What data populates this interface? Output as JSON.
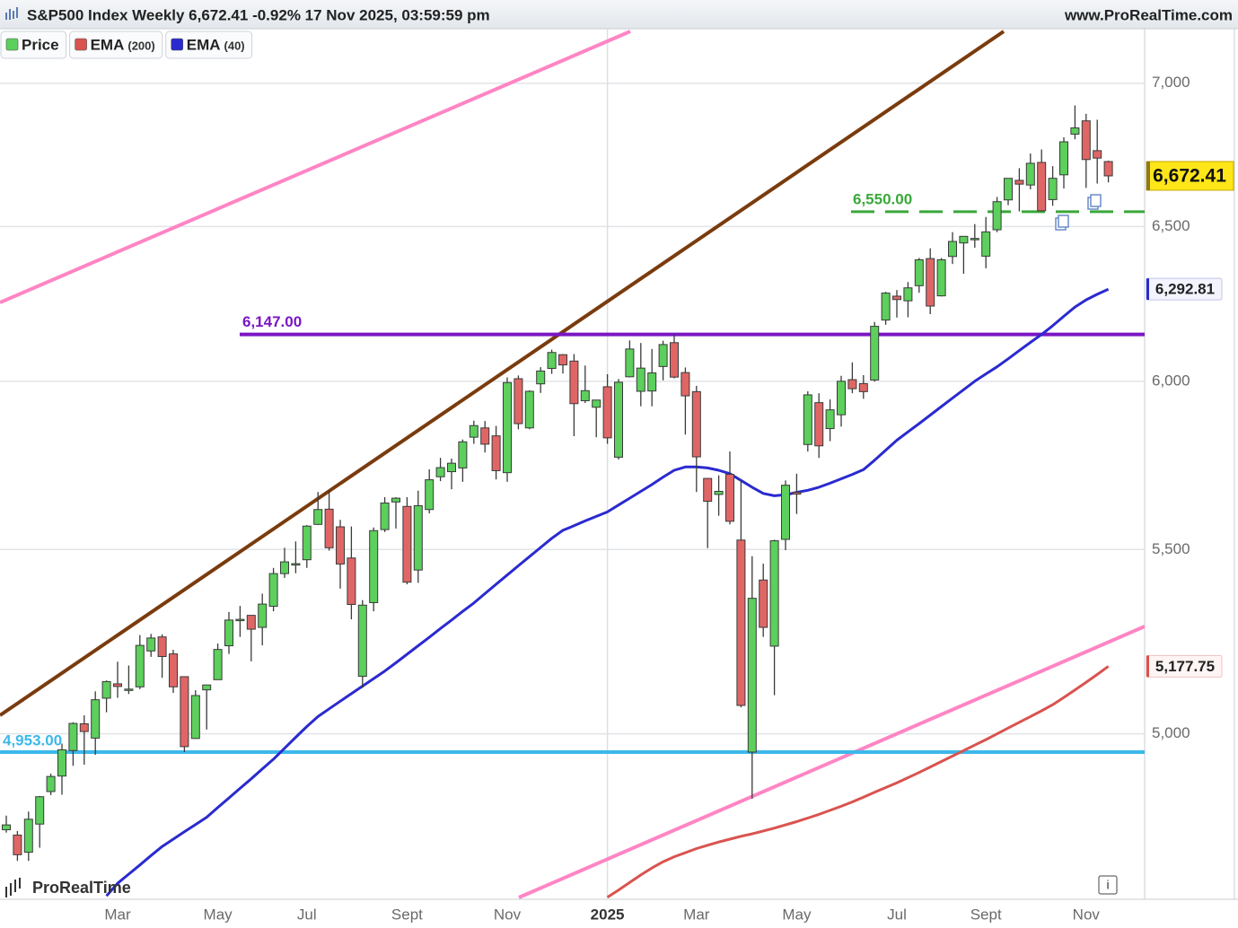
{
  "chart_data": {
    "type": "candlestick",
    "title": "S&P500 Index Weekly 6,672.41 -0.92% 17 Nov 2025, 03:59:59 pm",
    "source": "www.ProRealTime.com",
    "watermark": "ProRealTime",
    "log_scale": true,
    "grid": true,
    "ylim": [
      4590,
      7200
    ],
    "yticks": [
      {
        "value": 5000,
        "label": "5,000"
      },
      {
        "value": 5500,
        "label": "5,500"
      },
      {
        "value": 6000,
        "label": "6,000"
      },
      {
        "value": 6500,
        "label": "6,500"
      },
      {
        "value": 7000,
        "label": "7,000"
      }
    ],
    "categories": [
      null,
      null,
      null,
      null,
      null,
      null,
      null,
      null,
      null,
      null,
      "Mar",
      null,
      null,
      null,
      null,
      null,
      null,
      null,
      null,
      "May",
      null,
      null,
      null,
      null,
      null,
      null,
      null,
      "Jul",
      null,
      null,
      null,
      null,
      null,
      null,
      null,
      null,
      "Sept",
      null,
      null,
      null,
      null,
      null,
      null,
      null,
      null,
      "Nov",
      null,
      null,
      null,
      null,
      null,
      null,
      null,
      null,
      "2025",
      null,
      null,
      null,
      null,
      null,
      null,
      null,
      "Mar",
      null,
      null,
      null,
      null,
      null,
      null,
      null,
      null,
      "May",
      null,
      null,
      null,
      null,
      null,
      null,
      null,
      null,
      "Jul",
      null,
      null,
      null,
      null,
      null,
      null,
      null,
      "Sept",
      null,
      null,
      null,
      null,
      null,
      null,
      null,
      null,
      "Nov",
      null,
      null
    ],
    "series": [
      {
        "name": "Price",
        "color": "#3cb83c",
        "up_color": "#5ccf5c",
        "down_color": "#e06666",
        "last_label": "6,672.41",
        "open": [
          4758,
          4745,
          4703,
          4772,
          4853,
          4892,
          4957,
          5026,
          4989,
          5093,
          5131,
          5115,
          5123,
          5219,
          5257,
          5211,
          5150,
          4988,
          5115,
          5142,
          5233,
          5305,
          5316,
          5283,
          5341,
          5432,
          5460,
          5471,
          5572,
          5616,
          5565,
          5476,
          5151,
          5351,
          5557,
          5637,
          5624,
          5442,
          5615,
          5711,
          5726,
          5737,
          5829,
          5857,
          5833,
          5723,
          6008,
          5857,
          5992,
          6040,
          6083,
          6063,
          5940,
          5920,
          5983,
          5769,
          6014,
          5969,
          5970,
          6046,
          6121,
          6027,
          5968,
          5706,
          5659,
          5718,
          5527,
          4953,
          5414,
          5232,
          5529,
          5665,
          5807,
          5934,
          5855,
          5897,
          6005,
          5993,
          6004,
          6193,
          6270,
          6255,
          6304,
          6393,
          6271,
          6400,
          6445,
          6457,
          6401,
          6489,
          6590,
          6657,
          6641,
          6719,
          6591,
          6676,
          6818,
          6865,
          6760,
          6722
        ],
        "high": [
          4793,
          4755,
          4803,
          4842,
          4898,
          4975,
          5030,
          5048,
          5111,
          5140,
          5190,
          5180,
          5262,
          5265,
          5264,
          5222,
          5151,
          5114,
          5128,
          5239,
          5325,
          5342,
          5316,
          5376,
          5448,
          5505,
          5523,
          5570,
          5666,
          5670,
          5585,
          5566,
          5358,
          5563,
          5651,
          5651,
          5651,
          5670,
          5733,
          5767,
          5765,
          5822,
          5879,
          5878,
          5863,
          6012,
          6018,
          5972,
          6044,
          6099,
          6085,
          6085,
          6049,
          5940,
          6022,
          6007,
          6128,
          6120,
          6101,
          6127,
          6147,
          6043,
          5986,
          5706,
          5715,
          5786,
          5703,
          5481,
          5460,
          5528,
          5700,
          5720,
          5969,
          5963,
          5944,
          6017,
          6059,
          6019,
          6187,
          6284,
          6290,
          6316,
          6395,
          6427,
          6395,
          6481,
          6467,
          6508,
          6532,
          6600,
          6657,
          6699,
          6750,
          6764,
          6706,
          6807,
          6920,
          6890,
          6869,
          6725
        ],
        "low": [
          4751,
          4682,
          4682,
          4714,
          4844,
          4845,
          4918,
          4921,
          4946,
          5056,
          5094,
          5104,
          5117,
          5203,
          5147,
          5107,
          4953,
          4987,
          5011,
          5142,
          5211,
          5257,
          5191,
          5234,
          5327,
          5420,
          5433,
          5448,
          5570,
          5497,
          5390,
          5305,
          5120,
          5327,
          5550,
          5560,
          5402,
          5406,
          5604,
          5698,
          5674,
          5696,
          5809,
          5783,
          5703,
          5696,
          5853,
          5853,
          5964,
          6023,
          6024,
          5832,
          5933,
          5829,
          5809,
          5762,
          6012,
          5923,
          5923,
          6003,
          6009,
          5837,
          5666,
          5504,
          5597,
          5572,
          5069,
          4835,
          5257,
          5101,
          5498,
          5602,
          5786,
          5767,
          5817,
          5861,
          5963,
          5946,
          5999,
          6178,
          6201,
          6202,
          6281,
          6212,
          6269,
          6375,
          6343,
          6429,
          6361,
          6481,
          6572,
          6551,
          6626,
          6551,
          6570,
          6629,
          6800,
          6631,
          6646,
          6650
        ],
        "close": [
          4770,
          4697,
          4784,
          4840,
          4891,
          4959,
          5027,
          5006,
          5089,
          5137,
          5124,
          5117,
          5234,
          5254,
          5204,
          5123,
          4967,
          5100,
          5128,
          5223,
          5303,
          5305,
          5278,
          5347,
          5432,
          5465,
          5460,
          5567,
          5615,
          5505,
          5459,
          5346,
          5344,
          5554,
          5634,
          5648,
          5408,
          5626,
          5702,
          5738,
          5751,
          5815,
          5864,
          5808,
          5729,
          5996,
          5870,
          5969,
          6032,
          6090,
          6051,
          5931,
          5971,
          5942,
          5827,
          5997,
          6101,
          6041,
          6026,
          6115,
          6013,
          5955,
          5770,
          5639,
          5668,
          5581,
          5074,
          5363,
          5283,
          5525,
          5686,
          5660,
          5958,
          5803,
          5912,
          6000,
          5977,
          5968,
          6173,
          6280,
          6259,
          6297,
          6389,
          6238,
          6389,
          6450,
          6467,
          6460,
          6482,
          6584,
          6664,
          6644,
          6716,
          6553,
          6664,
          6791,
          6840,
          6729,
          6734,
          6672.41
        ]
      },
      {
        "name": "EMA",
        "param": "(200)",
        "color": "#d9534f",
        "last_label": "5,177.75",
        "values": [
          null,
          null,
          null,
          null,
          null,
          null,
          null,
          null,
          null,
          null,
          null,
          null,
          null,
          null,
          null,
          null,
          null,
          null,
          null,
          null,
          null,
          null,
          null,
          null,
          null,
          null,
          null,
          null,
          null,
          null,
          null,
          null,
          null,
          null,
          null,
          null,
          null,
          null,
          null,
          null,
          null,
          null,
          null,
          null,
          null,
          null,
          null,
          null,
          null,
          null,
          null,
          null,
          null,
          null,
          4595,
          4612,
          4630,
          4648,
          4665,
          4680,
          4692,
          4702,
          4712,
          4720,
          4728,
          4735,
          4742,
          4748,
          4755,
          4762,
          4770,
          4778,
          4787,
          4796,
          4806,
          4816,
          4827,
          4839,
          4851,
          4863,
          4875,
          4888,
          4901,
          4915,
          4929,
          4943,
          4957,
          4971,
          4985,
          5000,
          5015,
          5030,
          5045,
          5060,
          5076,
          5095,
          5115,
          5135,
          5156,
          5177.75
        ]
      },
      {
        "name": "EMA",
        "param": "(40)",
        "color": "#2a2ad0",
        "last_label": "6,292.81",
        "values": [
          null,
          null,
          null,
          null,
          null,
          null,
          null,
          null,
          null,
          4598,
          4628,
          4650,
          4672,
          4695,
          4717,
          4735,
          4753,
          4771,
          4789,
          4813,
          4837,
          4861,
          4885,
          4910,
          4935,
          4963,
          4991,
          5019,
          5045,
          5065,
          5085,
          5105,
          5125,
          5145,
          5165,
          5187,
          5210,
          5233,
          5256,
          5280,
          5303,
          5327,
          5350,
          5376,
          5402,
          5428,
          5454,
          5480,
          5506,
          5532,
          5555,
          5568,
          5582,
          5595,
          5608,
          5628,
          5648,
          5668,
          5688,
          5710,
          5730,
          5740,
          5740,
          5737,
          5730,
          5720,
          5700,
          5680,
          5662,
          5655,
          5658,
          5665,
          5671,
          5680,
          5692,
          5705,
          5718,
          5732,
          5760,
          5790,
          5820,
          5845,
          5870,
          5896,
          5922,
          5948,
          5974,
          6000,
          6023,
          6045,
          6070,
          6096,
          6122,
          6147,
          6175,
          6205,
          6235,
          6258,
          6276,
          6292.81
        ]
      }
    ],
    "levels": [
      {
        "value": 6147,
        "label": "6,147.00",
        "color": "#7a16c4",
        "style": "solid"
      },
      {
        "value": 6550,
        "label": "6,550.00",
        "color": "#3aa83a",
        "style": "dashed"
      },
      {
        "value": 4953,
        "label": "4,953.00",
        "color": "#3cb8ea",
        "style": "solid"
      }
    ]
  }
}
